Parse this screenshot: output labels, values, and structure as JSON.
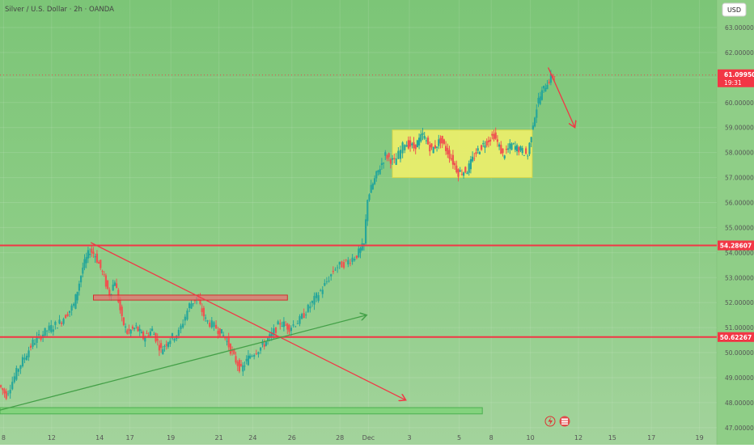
{
  "header": {
    "title": "Silver / U.S. Dollar · 2h · OANDA"
  },
  "currency_button": {
    "label": "USD"
  },
  "price_badge": {
    "price": "61.09950",
    "countdown": "19:31"
  },
  "level_badges": [
    {
      "label": "54.28607",
      "value": 54.28607
    },
    {
      "label": "50.62267",
      "value": 50.62267
    }
  ],
  "colors": {
    "background": "#86c97f",
    "bull": "#26a69a",
    "bear": "#ef5350",
    "level_line": "#f23645",
    "trend_green": "#43a047",
    "box_yellow": "#eef06a",
    "axis_text": "#555555"
  },
  "icons": [
    "lightning-icon",
    "tradingview-flag-icon"
  ],
  "chart_data": {
    "type": "candlestick",
    "title": "Silver / U.S. Dollar · 2h · OANDA",
    "currency": "USD",
    "ylim": [
      46.8,
      64.1
    ],
    "yticks": [
      47,
      48,
      49,
      50,
      51,
      52,
      53,
      54,
      55,
      56,
      57,
      58,
      59,
      60,
      61,
      62,
      63
    ],
    "ytick_labels": [
      "47.00000",
      "48.00000",
      "49.00000",
      "50.00000",
      "51.00000",
      "52.00000",
      "53.00000",
      "54.00000",
      "55.00000",
      "56.00000",
      "57.00000",
      "58.00000",
      "59.00000",
      "60.00000",
      "61.00000",
      "62.00000",
      "63.00000"
    ],
    "xlim": [
      0,
      40
    ],
    "xticks": [
      {
        "label": "8",
        "x": 0.2
      },
      {
        "label": "12",
        "x": 2.9
      },
      {
        "label": "14",
        "x": 5.6
      },
      {
        "label": "17",
        "x": 7.3
      },
      {
        "label": "19",
        "x": 9.6
      },
      {
        "label": "21",
        "x": 12.3
      },
      {
        "label": "24",
        "x": 14.2
      },
      {
        "label": "26",
        "x": 16.4
      },
      {
        "label": "28",
        "x": 19.1
      },
      {
        "label": "Dec",
        "x": 20.7
      },
      {
        "label": "3",
        "x": 23.0
      },
      {
        "label": "5",
        "x": 25.8
      },
      {
        "label": "8",
        "x": 27.6
      },
      {
        "label": "10",
        "x": 29.8
      },
      {
        "label": "12",
        "x": 32.5
      },
      {
        "label": "15",
        "x": 34.4
      },
      {
        "label": "17",
        "x": 36.6
      },
      {
        "label": "19",
        "x": 39.3
      }
    ],
    "last_price": 61.0995,
    "horizontal_levels": [
      54.28607,
      50.62267
    ],
    "path_points": [
      [
        0,
        48.7
      ],
      [
        0.4,
        48.3
      ],
      [
        1.1,
        49.4
      ],
      [
        1.9,
        50.4
      ],
      [
        2.7,
        50.9
      ],
      [
        3.4,
        51.2
      ],
      [
        4.2,
        51.9
      ],
      [
        4.7,
        53.4
      ],
      [
        5.1,
        54.1
      ],
      [
        5.4,
        53.9
      ],
      [
        5.8,
        53.2
      ],
      [
        6.2,
        52.3
      ],
      [
        6.5,
        52.9
      ],
      [
        6.9,
        51.3
      ],
      [
        7.2,
        50.8
      ],
      [
        7.7,
        51.0
      ],
      [
        8.1,
        50.6
      ],
      [
        8.6,
        50.9
      ],
      [
        9.1,
        50.1
      ],
      [
        9.5,
        50.5
      ],
      [
        10.1,
        50.8
      ],
      [
        10.7,
        51.9
      ],
      [
        11.1,
        52.2
      ],
      [
        11.6,
        51.3
      ],
      [
        12.2,
        51.0
      ],
      [
        12.7,
        50.6
      ],
      [
        13.2,
        49.8
      ],
      [
        13.6,
        49.3
      ],
      [
        14.1,
        49.9
      ],
      [
        14.7,
        50.2
      ],
      [
        15.2,
        50.6
      ],
      [
        15.8,
        51.2
      ],
      [
        16.3,
        51.0
      ],
      [
        16.9,
        51.3
      ],
      [
        17.6,
        52.0
      ],
      [
        18.3,
        52.7
      ],
      [
        18.9,
        53.4
      ],
      [
        19.5,
        53.6
      ],
      [
        20.1,
        53.9
      ],
      [
        20.5,
        54.3
      ],
      [
        20.7,
        56.2
      ],
      [
        21.2,
        57.1
      ],
      [
        21.7,
        57.9
      ],
      [
        22.2,
        57.6
      ],
      [
        22.8,
        58.4
      ],
      [
        23.3,
        58.2
      ],
      [
        23.8,
        58.7
      ],
      [
        24.3,
        58.1
      ],
      [
        24.8,
        58.5
      ],
      [
        25.3,
        57.9
      ],
      [
        25.8,
        57.2
      ],
      [
        26.3,
        57.3
      ],
      [
        26.8,
        58.0
      ],
      [
        27.3,
        58.4
      ],
      [
        27.8,
        58.7
      ],
      [
        28.3,
        57.9
      ],
      [
        28.8,
        58.3
      ],
      [
        29.3,
        58.1
      ],
      [
        29.7,
        57.9
      ],
      [
        30.0,
        59.2
      ],
      [
        30.3,
        60.1
      ],
      [
        30.7,
        60.7
      ],
      [
        31.0,
        61.0
      ],
      [
        31.2,
        61.1
      ]
    ],
    "annotations": {
      "support_zone_red": {
        "x": [
          5.25,
          16.15
        ],
        "y": [
          52.1,
          52.3
        ]
      },
      "range_box_yellow": {
        "x": [
          22.05,
          29.9
        ],
        "y": [
          57.0,
          58.9
        ]
      },
      "support_zone_green": {
        "x": [
          0,
          27.1
        ],
        "y": [
          47.55,
          47.8
        ]
      },
      "downtrend_line": {
        "from": [
          5.1,
          54.4
        ],
        "to": [
          22.8,
          48.1
        ]
      },
      "uptrend_line": {
        "from": [
          0,
          47.7
        ],
        "to": [
          20.6,
          51.5
        ]
      },
      "forecast_arrow": {
        "from": [
          30.8,
          61.4
        ],
        "to": [
          32.3,
          59.0
        ]
      }
    }
  }
}
